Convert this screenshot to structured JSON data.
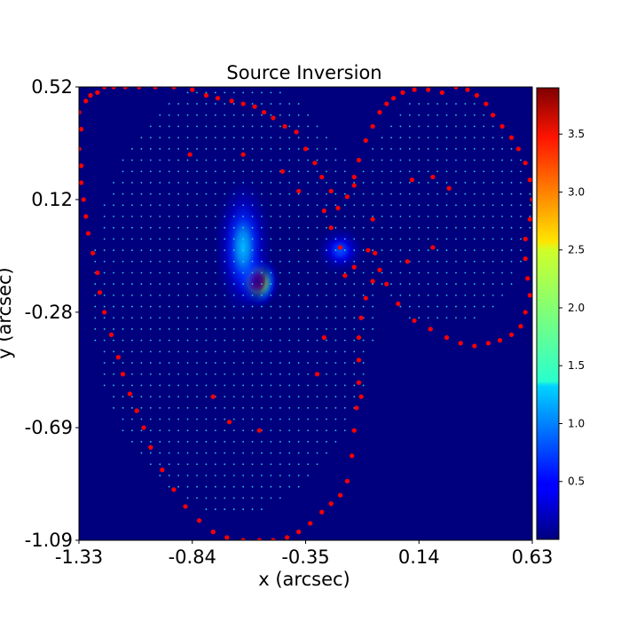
{
  "chart_data": {
    "type": "scatter",
    "title": "Source Inversion",
    "xlabel": "x (arcsec)",
    "ylabel": "y (arcsec)",
    "xlim": [
      -1.33,
      0.63
    ],
    "ylim": [
      -1.09,
      0.52
    ],
    "x_ticks": [
      "-1.33",
      "-0.84",
      "-0.35",
      "0.14",
      "0.63"
    ],
    "y_ticks": [
      "0.52",
      "0.12",
      "-0.28",
      "-0.69",
      "-1.09"
    ],
    "background_color": "#00007f",
    "grid": false,
    "colorbar": {
      "colormap": "jet",
      "range": [
        0.0,
        3.9
      ],
      "ticks": [
        "0.5",
        "1.0",
        "1.5",
        "2.0",
        "2.5",
        "3.0",
        "3.5"
      ]
    },
    "emission_peaks": [
      {
        "x": -0.56,
        "y": -0.17,
        "peak": 3.9,
        "sigma_x": 0.045,
        "sigma_y": 0.045
      },
      {
        "x": -0.62,
        "y": -0.05,
        "peak": 1.2,
        "sigma_x": 0.06,
        "sigma_y": 0.12
      },
      {
        "x": -0.2,
        "y": -0.06,
        "peak": 0.8,
        "sigma_x": 0.05,
        "sigma_y": 0.04
      }
    ],
    "series": [
      {
        "marker": "red-dot",
        "color": "#ff0000",
        "points": [
          [
            -1.33,
            0.43
          ],
          [
            -1.32,
            0.37
          ],
          [
            -1.3,
            0.47
          ],
          [
            -1.28,
            0.49
          ],
          [
            -1.25,
            0.5
          ],
          [
            -1.22,
            0.52
          ],
          [
            -1.18,
            0.52
          ],
          [
            -1.13,
            0.52
          ],
          [
            -1.07,
            0.52
          ],
          [
            -1.0,
            0.52
          ],
          [
            -0.92,
            0.52
          ],
          [
            -0.84,
            0.51
          ],
          [
            -0.78,
            0.49
          ],
          [
            -0.73,
            0.48
          ],
          [
            -0.67,
            0.47
          ],
          [
            -0.62,
            0.46
          ],
          [
            -0.57,
            0.45
          ],
          [
            -0.53,
            0.43
          ],
          [
            -0.49,
            0.41
          ],
          [
            -0.44,
            0.38
          ],
          [
            -0.39,
            0.36
          ],
          [
            -0.35,
            0.3
          ],
          [
            -0.31,
            0.25
          ],
          [
            -0.28,
            0.2
          ],
          [
            -0.24,
            0.15
          ],
          [
            -0.21,
            0.09
          ],
          [
            -0.17,
            0.13
          ],
          [
            -0.14,
            0.2
          ],
          [
            -0.12,
            0.26
          ],
          [
            -0.09,
            0.33
          ],
          [
            -0.06,
            0.38
          ],
          [
            -0.03,
            0.43
          ],
          [
            0.0,
            0.46
          ],
          [
            0.03,
            0.48
          ],
          [
            0.07,
            0.5
          ],
          [
            0.12,
            0.51
          ],
          [
            0.18,
            0.51
          ],
          [
            0.24,
            0.5
          ],
          [
            0.3,
            0.52
          ],
          [
            0.35,
            0.51
          ],
          [
            0.39,
            0.49
          ],
          [
            0.43,
            0.46
          ],
          [
            0.46,
            0.42
          ],
          [
            0.5,
            0.38
          ],
          [
            0.54,
            0.34
          ],
          [
            0.57,
            0.3
          ],
          [
            0.6,
            0.25
          ],
          [
            0.62,
            0.19
          ],
          [
            0.63,
            0.12
          ],
          [
            0.62,
            0.05
          ],
          [
            0.6,
            -0.02
          ],
          [
            0.6,
            -0.09
          ],
          [
            0.61,
            -0.16
          ],
          [
            0.62,
            -0.22
          ],
          [
            0.6,
            -0.28
          ],
          [
            0.58,
            -0.33
          ],
          [
            0.54,
            -0.36
          ],
          [
            0.49,
            -0.38
          ],
          [
            0.44,
            -0.39
          ],
          [
            0.38,
            -0.4
          ],
          [
            0.32,
            -0.39
          ],
          [
            0.26,
            -0.37
          ],
          [
            0.19,
            -0.34
          ],
          [
            0.12,
            -0.31
          ],
          [
            0.05,
            -0.25
          ],
          [
            0.0,
            -0.18
          ],
          [
            -0.03,
            -0.13
          ],
          [
            -0.06,
            -0.17
          ],
          [
            -0.09,
            -0.23
          ],
          [
            -0.11,
            -0.3
          ],
          [
            -0.12,
            -0.37
          ],
          [
            -0.12,
            -0.45
          ],
          [
            -0.12,
            -0.53
          ],
          [
            -0.13,
            -0.62
          ],
          [
            -0.14,
            -0.7
          ],
          [
            -0.15,
            -0.79
          ],
          [
            -0.17,
            -0.88
          ],
          [
            -0.2,
            -0.93
          ],
          [
            -0.24,
            -0.96
          ],
          [
            -0.28,
            -0.99
          ],
          [
            -0.33,
            -1.03
          ],
          [
            -0.38,
            -1.06
          ],
          [
            -0.43,
            -1.08
          ],
          [
            -0.49,
            -1.09
          ],
          [
            -0.55,
            -1.09
          ],
          [
            -0.62,
            -1.09
          ],
          [
            -0.69,
            -1.08
          ],
          [
            -0.75,
            -1.06
          ],
          [
            -0.81,
            -1.02
          ],
          [
            -0.87,
            -0.97
          ],
          [
            -0.92,
            -0.91
          ],
          [
            -0.97,
            -0.84
          ],
          [
            -1.02,
            -0.76
          ],
          [
            -1.05,
            -0.69
          ],
          [
            -1.08,
            -0.63
          ],
          [
            -1.11,
            -0.57
          ],
          [
            -1.14,
            -0.5
          ],
          [
            -1.16,
            -0.44
          ],
          [
            -1.19,
            -0.36
          ],
          [
            -1.22,
            -0.28
          ],
          [
            -1.24,
            -0.21
          ],
          [
            -1.25,
            -0.14
          ],
          [
            -1.27,
            -0.07
          ],
          [
            -1.29,
            0.0
          ],
          [
            -1.3,
            0.06
          ],
          [
            -1.31,
            0.12
          ],
          [
            -1.32,
            0.18
          ],
          [
            -1.32,
            0.24
          ],
          [
            -1.33,
            0.3
          ],
          [
            -0.85,
            0.28
          ],
          [
            -0.62,
            0.28
          ],
          [
            -0.45,
            0.22
          ],
          [
            -0.38,
            0.15
          ],
          [
            -0.27,
            0.08
          ],
          [
            -0.24,
            0.02
          ],
          [
            -0.2,
            -0.05
          ],
          [
            -0.14,
            -0.12
          ],
          [
            -0.08,
            -0.06
          ],
          [
            -0.06,
            0.05
          ],
          [
            -0.14,
            0.17
          ],
          [
            -0.18,
            -0.15
          ],
          [
            -0.27,
            -0.37
          ],
          [
            -0.3,
            -0.5
          ],
          [
            -0.75,
            -0.58
          ],
          [
            -0.55,
            -0.7
          ],
          [
            -0.68,
            -0.67
          ],
          [
            -0.05,
            -0.07
          ],
          [
            0.11,
            0.19
          ],
          [
            0.2,
            0.2
          ],
          [
            0.27,
            0.16
          ],
          [
            0.2,
            -0.05
          ],
          [
            0.09,
            -0.1
          ],
          [
            -0.11,
            -0.58
          ]
        ]
      },
      {
        "marker": "cyan-dot",
        "color": "#30c8d8",
        "grid_step": [
          0.04,
          0.04
        ],
        "lobes": [
          {
            "cx": -0.66,
            "cy": -0.22,
            "rx": 0.62,
            "ry": 0.78
          },
          {
            "cx": 0.25,
            "cy": 0.08,
            "rx": 0.38,
            "ry": 0.42
          },
          {
            "cx": -0.15,
            "cy": -0.05,
            "rx": 0.2,
            "ry": 0.22
          }
        ]
      }
    ]
  }
}
